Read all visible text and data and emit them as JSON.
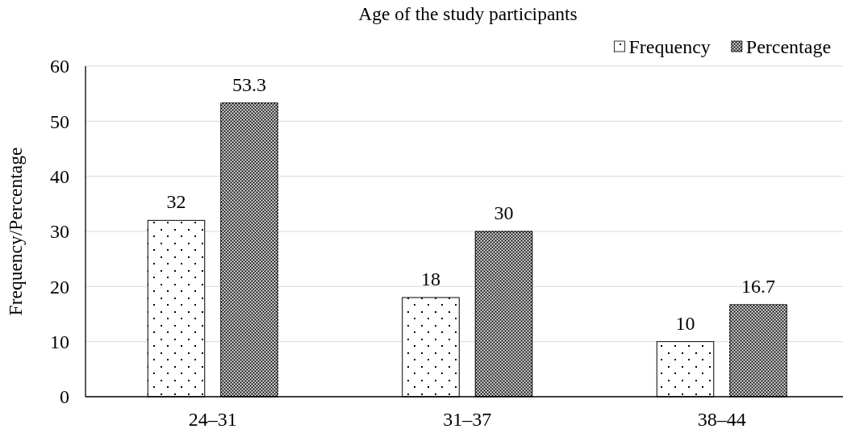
{
  "chart_data": {
    "type": "bar",
    "title": "Age of the study participants",
    "ylabel": "Frequency/Percentage",
    "categories": [
      "24–31",
      "31–37",
      "38–44"
    ],
    "series": [
      {
        "name": "Frequency",
        "color": "#ffffff",
        "values": [
          32,
          18,
          10
        ]
      },
      {
        "name": "Percentage",
        "color": "#808080",
        "values": [
          53.3,
          30,
          16.7
        ]
      }
    ],
    "ylim": [
      0,
      60
    ],
    "yticks": [
      0,
      10,
      20,
      30,
      40,
      50,
      60
    ],
    "grid": "y",
    "legend": "top right",
    "data_labels": true
  }
}
